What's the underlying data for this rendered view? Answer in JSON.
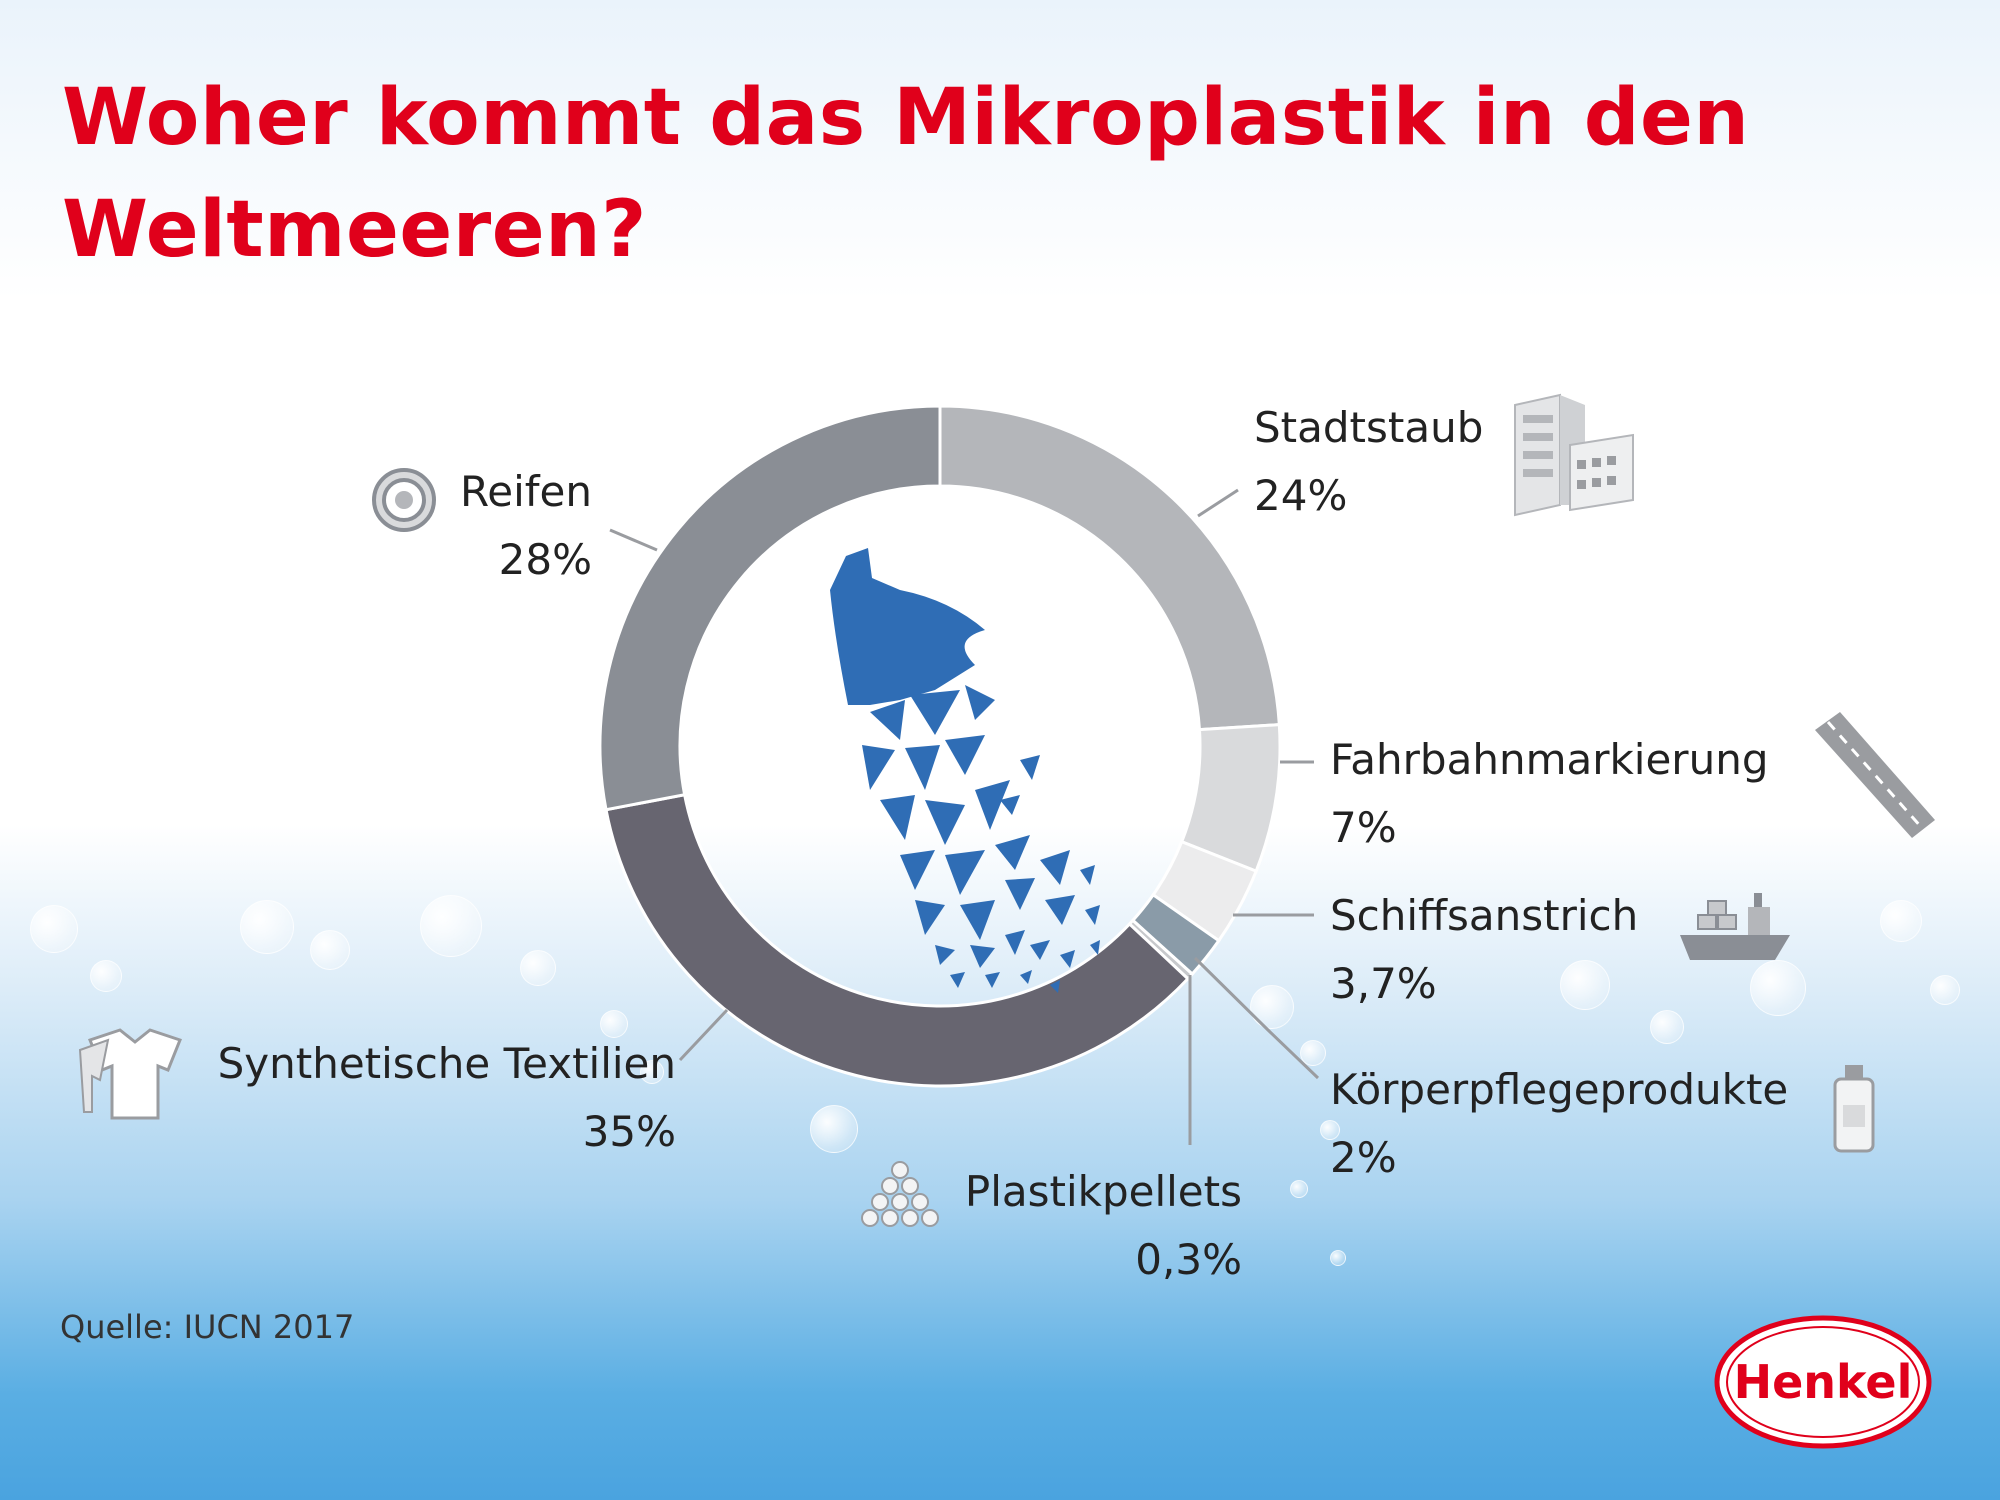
{
  "title": "Woher kommt das Mikroplastik in den Weltmeeren?",
  "source": "Quelle: IUCN 2017",
  "brand": "Henkel",
  "colors": {
    "title": "#e0001b",
    "brand_red": "#e0001b",
    "bottle_blue": "#2f6db5"
  },
  "chart_data": {
    "type": "pie",
    "title": "Woher kommt das Mikroplastik in den Weltmeeren?",
    "categories": [
      "Stadtstaub",
      "Fahrbahnmarkierung",
      "Schiffsanstrich",
      "Körperpflegeprodukte",
      "Plastikpellets",
      "Synthetische Textilien",
      "Reifen"
    ],
    "values": [
      24,
      7,
      3.7,
      2,
      0.3,
      35,
      28
    ],
    "value_labels": [
      "24%",
      "7%",
      "3,7%",
      "2%",
      "0,3%",
      "35%",
      "28%"
    ],
    "colors": [
      "#b4b6ba",
      "#d9dadc",
      "#ececed",
      "#8a9ba8",
      "#c7c9cc",
      "#676570",
      "#8a8e95"
    ],
    "icons": [
      "building-icon",
      "road-icon",
      "ship-icon",
      "lotion-bottle-icon",
      "pellets-icon",
      "tshirt-icon",
      "tire-icon"
    ],
    "donut": true,
    "start": "12 o'clock, clockwise",
    "center_graphic": "breaking-plastic-bottle",
    "legend": "none"
  }
}
